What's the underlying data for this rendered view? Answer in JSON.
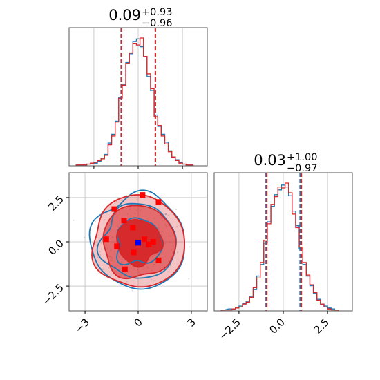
{
  "colors": {
    "series_blue": "#1f77b4",
    "series_red": "#d62728",
    "truth_blue": "#0000ff",
    "truth_red": "#ff0000",
    "grid": "#cccccc",
    "axes": "#555555"
  },
  "chart_data": [
    {
      "type": "histogram",
      "panel": "top-left",
      "title": {
        "value": "0.09",
        "plus": "+0.93",
        "minus": "−0.96"
      },
      "xlim": [
        -3.9,
        3.9
      ],
      "grid": true,
      "series": [
        {
          "color": "#1f77b4",
          "quantile_lines": [
            -0.96,
            0.97
          ],
          "bin_centers": [
            -3.4,
            -3.0,
            -2.8,
            -2.6,
            -2.4,
            -2.2,
            -2.0,
            -1.8,
            -1.6,
            -1.4,
            -1.2,
            -1.0,
            -0.8,
            -0.6,
            -0.4,
            -0.2,
            0.0,
            0.2,
            0.4,
            0.6,
            0.8,
            1.0,
            1.2,
            1.4,
            1.6,
            1.8,
            2.0,
            2.2,
            2.4,
            2.6,
            2.8,
            3.0
          ],
          "counts": [
            1,
            1,
            2,
            3,
            3,
            5,
            9,
            13,
            26,
            36,
            51,
            78,
            93,
            118,
            128,
            142,
            145,
            136,
            125,
            102,
            86,
            58,
            45,
            36,
            27,
            17,
            10,
            7,
            4,
            2,
            1,
            1
          ]
        },
        {
          "color": "#d62728",
          "quantile_lines": [
            -0.94,
            0.97
          ],
          "bin_centers": [
            -3.4,
            -3.0,
            -2.8,
            -2.6,
            -2.4,
            -2.2,
            -2.0,
            -1.8,
            -1.6,
            -1.4,
            -1.2,
            -1.0,
            -0.8,
            -0.6,
            -0.4,
            -0.2,
            0.0,
            0.2,
            0.4,
            0.6,
            0.8,
            1.0,
            1.2,
            1.4,
            1.6,
            1.8,
            2.0,
            2.2,
            2.4,
            2.6,
            2.8,
            3.0
          ],
          "counts": [
            1,
            1,
            2,
            3,
            4,
            6,
            8,
            12,
            24,
            34,
            50,
            77,
            92,
            117,
            129,
            140,
            138,
            146,
            125,
            105,
            88,
            56,
            46,
            34,
            25,
            16,
            10,
            6,
            3,
            2,
            1,
            1
          ]
        }
      ]
    },
    {
      "type": "histogram",
      "panel": "bottom-right",
      "title": {
        "value": "0.03",
        "plus": "+1.00",
        "minus": "−0.97"
      },
      "xlim": [
        -3.9,
        3.9
      ],
      "xticks": [
        "−2.5",
        "0.0",
        "2.5"
      ],
      "xtick_values": [
        -2.5,
        0.0,
        2.5
      ],
      "grid": true,
      "series": [
        {
          "color": "#1f77b4",
          "quantile_lines": [
            -0.97,
            0.95
          ],
          "bin_centers": [
            -3.4,
            -3.0,
            -2.8,
            -2.6,
            -2.4,
            -2.2,
            -2.0,
            -1.8,
            -1.6,
            -1.4,
            -1.2,
            -1.0,
            -0.8,
            -0.6,
            -0.4,
            -0.2,
            0.0,
            0.2,
            0.4,
            0.6,
            0.8,
            1.0,
            1.2,
            1.4,
            1.6,
            1.8,
            2.0,
            2.2,
            2.4,
            2.6,
            2.8,
            3.0
          ],
          "counts": [
            1,
            2,
            2,
            3,
            5,
            8,
            10,
            15,
            22,
            36,
            48,
            70,
            92,
            108,
            120,
            125,
            130,
            128,
            119,
            103,
            88,
            64,
            48,
            36,
            26,
            18,
            12,
            7,
            5,
            3,
            2,
            1
          ]
        },
        {
          "color": "#d62728",
          "quantile_lines": [
            -0.93,
            1.02
          ],
          "bin_centers": [
            -3.4,
            -3.0,
            -2.8,
            -2.6,
            -2.4,
            -2.2,
            -2.0,
            -1.8,
            -1.6,
            -1.4,
            -1.2,
            -1.0,
            -0.8,
            -0.6,
            -0.4,
            -0.2,
            0.0,
            0.2,
            0.4,
            0.6,
            0.8,
            1.0,
            1.2,
            1.4,
            1.6,
            1.8,
            2.0,
            2.2,
            2.4,
            2.6,
            2.8,
            3.0
          ],
          "counts": [
            1,
            1,
            2,
            3,
            4,
            7,
            9,
            14,
            24,
            34,
            50,
            73,
            90,
            110,
            118,
            128,
            127,
            132,
            122,
            100,
            86,
            66,
            50,
            37,
            27,
            19,
            11,
            7,
            4,
            2,
            1,
            1
          ]
        }
      ]
    },
    {
      "type": "contour",
      "panel": "bottom-left",
      "xlim": [
        -3.9,
        3.9
      ],
      "ylim": [
        -3.9,
        3.9
      ],
      "xticks": [
        "−3",
        "0",
        "3"
      ],
      "xtick_values": [
        -3,
        0,
        3
      ],
      "yticks": [
        "−2.5",
        "0.0",
        "2.5"
      ],
      "ytick_values": [
        -2.5,
        0.0,
        2.5
      ],
      "grid": true,
      "contour_levels_sigma": [
        1,
        2,
        3
      ],
      "series": [
        {
          "color": "#1f77b4",
          "filled": false,
          "mean": [
            0.03,
            0.0
          ]
        },
        {
          "color": "#d62728",
          "filled": true,
          "mean": [
            0.02,
            0.0
          ]
        }
      ],
      "markers": {
        "blue": {
          "color": "#0000ff",
          "points": [
            [
              0.0,
              -0.05
            ]
          ]
        },
        "red": {
          "color": "#ff0000",
          "points": [
            [
              -1.8,
              0.15
            ],
            [
              -1.2,
              -0.25
            ],
            [
              -0.8,
              1.2
            ],
            [
              -0.3,
              0.8
            ],
            [
              -0.25,
              -0.6
            ],
            [
              0.35,
              0.15
            ],
            [
              0.6,
              -0.15
            ],
            [
              0.85,
              0.0
            ],
            [
              -0.75,
              -1.55
            ],
            [
              1.15,
              -1.05
            ],
            [
              0.25,
              2.65
            ],
            [
              1.15,
              2.25
            ],
            [
              -1.35,
              1.85
            ]
          ]
        }
      }
    }
  ]
}
